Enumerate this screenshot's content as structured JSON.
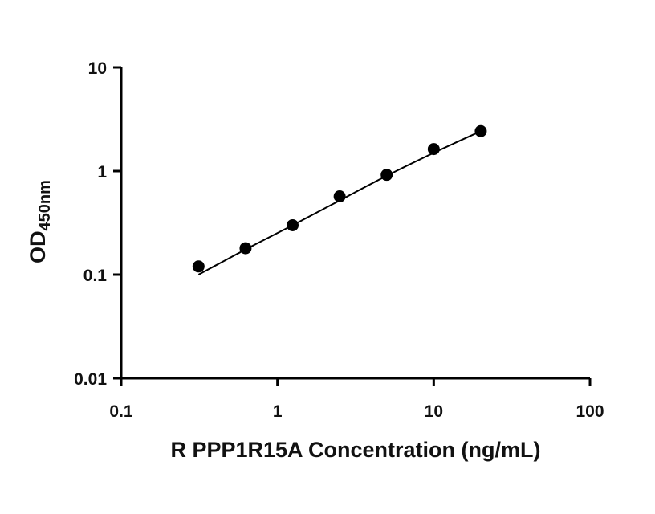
{
  "chart_data": {
    "type": "scatter",
    "title": "",
    "xlabel": "R PPP1R15A Concentration (ng/mL)",
    "ylabel": {
      "main": "OD",
      "subscript": "450nm"
    },
    "x_scale": "log",
    "y_scale": "log",
    "xlim": [
      0.1,
      100
    ],
    "ylim": [
      0.01,
      10
    ],
    "x_ticks": [
      0.1,
      1,
      10,
      100
    ],
    "x_tick_labels": [
      "0.1",
      "1",
      "10",
      "100"
    ],
    "y_ticks": [
      0.01,
      0.1,
      1,
      10
    ],
    "y_tick_labels": [
      "0.01",
      "0.1",
      "1",
      "10"
    ],
    "grid": false,
    "legend": "none",
    "series": [
      {
        "points": [
          {
            "x": 0.3125,
            "y": 0.12
          },
          {
            "x": 0.625,
            "y": 0.18
          },
          {
            "x": 1.25,
            "y": 0.3
          },
          {
            "x": 2.5,
            "y": 0.57
          },
          {
            "x": 5,
            "y": 0.92
          },
          {
            "x": 10,
            "y": 1.63
          },
          {
            "x": 20,
            "y": 2.43
          }
        ],
        "fit_curve": {
          "type": "4PL",
          "x_range": [
            0.3125,
            20
          ],
          "sampled_points": [
            {
              "x": 0.3125,
              "y": 0.1
            },
            {
              "x": 0.625,
              "y": 0.175
            },
            {
              "x": 1.25,
              "y": 0.3
            },
            {
              "x": 2.5,
              "y": 0.52
            },
            {
              "x": 5,
              "y": 0.9
            },
            {
              "x": 10,
              "y": 1.5
            },
            {
              "x": 20,
              "y": 2.43
            }
          ]
        }
      }
    ],
    "colors": {
      "marker": "#000000",
      "line": "#000000",
      "axis": "#000000"
    }
  }
}
